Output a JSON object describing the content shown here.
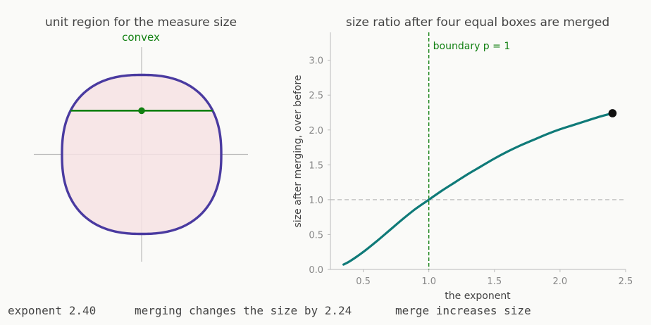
{
  "colors": {
    "background": "#fafaf8",
    "region_fill": "#f6e2e4",
    "region_outline": "#4a3aa0",
    "chord": "#128012",
    "curve": "#0f7a78",
    "marker": "#111111",
    "boundary": "#128012",
    "reference": "#bbbbbb",
    "axis": "#bbbbbb",
    "text": "#444444",
    "tick_text": "#888888"
  },
  "chart_data": [
    {
      "type": "diagram",
      "title": "unit region for the measure size",
      "annotation": "convex",
      "exponent": 2.4,
      "shape": "unit ball of the p-norm |x|^p + |y|^p = 1",
      "chord": "horizontal chord through the marked point, endpoints on the boundary"
    },
    {
      "type": "line",
      "title": "size ratio after four equal boxes are merged",
      "xlabel": "the exponent",
      "ylabel": "size after merging, over before",
      "xlim": [
        0.25,
        2.5
      ],
      "ylim": [
        0,
        3.4
      ],
      "x_ticks": [
        "0.5",
        "1.0",
        "1.5",
        "2.0",
        "2.5"
      ],
      "y_ticks": [
        "0.0",
        "0.5",
        "1.0",
        "1.5",
        "2.0",
        "2.5",
        "3.0"
      ],
      "series": [
        {
          "x": [
            0.35,
            0.4,
            0.5,
            0.6,
            0.7,
            0.8,
            0.9,
            1.0,
            1.1,
            1.2,
            1.3,
            1.4,
            1.5,
            1.6,
            1.7,
            1.8,
            1.9,
            2.0,
            2.1,
            2.2,
            2.3,
            2.4
          ],
          "y": [
            0.07,
            0.12,
            0.25,
            0.4,
            0.56,
            0.72,
            0.87,
            1.0,
            1.13,
            1.25,
            1.37,
            1.48,
            1.59,
            1.69,
            1.78,
            1.86,
            1.94,
            2.01,
            2.07,
            2.13,
            2.19,
            2.24
          ]
        }
      ],
      "current_point": {
        "x": 2.4,
        "y": 2.24
      },
      "reference_line_y": 1.0,
      "boundary_x": 1.0,
      "boundary_label": "boundary p = 1",
      "grid": false
    }
  ],
  "status_bar": {
    "exponent_text": "exponent 2.40",
    "change_text": "merging changes the size by 2.24",
    "verdict_text": "merge increases size"
  }
}
